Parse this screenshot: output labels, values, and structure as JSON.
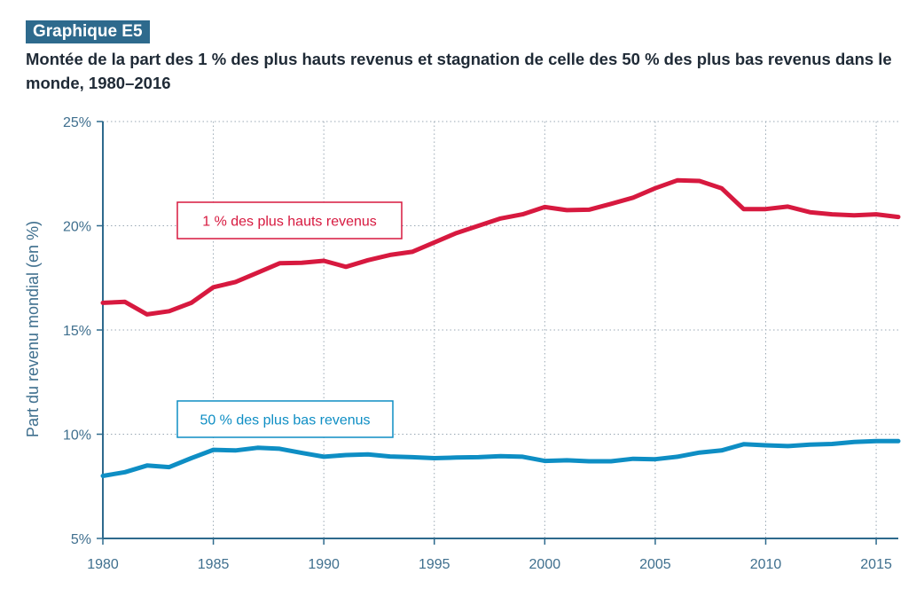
{
  "figure": {
    "badge": "Graphique E5",
    "title": "Montée de la part des 1 % des plus hauts revenus et stagnation de celle des 50 % des plus bas revenus dans le monde, 1980–2016"
  },
  "colors": {
    "top1": "#d7193f",
    "bottom50": "#0e8ec4",
    "axis": "#2e6a8d"
  },
  "chart_data": {
    "type": "line",
    "ylabel": "Part du revenu mondial (en %)",
    "xlabel": "",
    "xlim": [
      1980,
      2016
    ],
    "ylim": [
      5,
      25
    ],
    "x_ticks": [
      1980,
      1985,
      1990,
      1995,
      2000,
      2005,
      2010,
      2015
    ],
    "y_ticks": [
      5,
      10,
      15,
      20,
      25
    ],
    "y_tick_labels": [
      "5%",
      "10%",
      "15%",
      "20%",
      "25%"
    ],
    "grid": "dotted",
    "x": [
      1980,
      1981,
      1982,
      1983,
      1984,
      1985,
      1986,
      1987,
      1988,
      1989,
      1990,
      1991,
      1992,
      1993,
      1994,
      1995,
      1996,
      1997,
      1998,
      1999,
      2000,
      2001,
      2002,
      2003,
      2004,
      2005,
      2006,
      2007,
      2008,
      2009,
      2010,
      2011,
      2012,
      2013,
      2014,
      2015,
      2016
    ],
    "series": [
      {
        "name": "1 % des plus hauts revenus",
        "key": "top1",
        "values": [
          16.3,
          16.35,
          15.75,
          15.9,
          16.3,
          17.05,
          17.3,
          17.75,
          18.2,
          18.22,
          18.32,
          18.03,
          18.35,
          18.6,
          18.75,
          19.2,
          19.65,
          20.0,
          20.35,
          20.55,
          20.9,
          20.75,
          20.77,
          21.05,
          21.35,
          21.8,
          22.18,
          22.15,
          21.8,
          20.8,
          20.8,
          20.92,
          20.65,
          20.55,
          20.5,
          20.55,
          20.42
        ]
      },
      {
        "name": "50 % des plus bas revenus",
        "key": "bottom50",
        "values": [
          8.0,
          8.18,
          8.5,
          8.42,
          8.85,
          9.25,
          9.22,
          9.35,
          9.3,
          9.1,
          8.92,
          9.0,
          9.03,
          8.93,
          8.9,
          8.85,
          8.88,
          8.9,
          8.95,
          8.92,
          8.72,
          8.75,
          8.7,
          8.7,
          8.82,
          8.8,
          8.92,
          9.12,
          9.22,
          9.52,
          9.47,
          9.43,
          9.5,
          9.53,
          9.63,
          9.67,
          9.67
        ]
      }
    ]
  }
}
